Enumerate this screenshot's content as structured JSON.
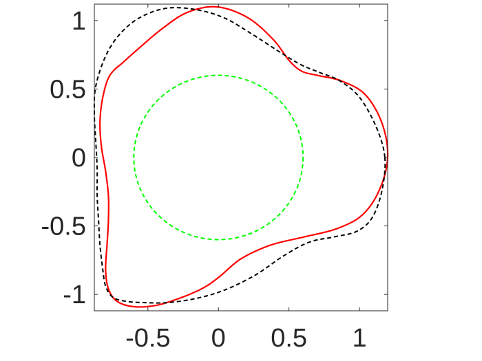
{
  "chart_data": {
    "type": "line",
    "title": "",
    "xlabel": "",
    "ylabel": "",
    "xlim": [
      -0.88,
      1.2
    ],
    "ylim": [
      -1.12,
      1.12
    ],
    "xticks": [
      -0.5,
      0,
      0.5,
      1
    ],
    "yticks": [
      -1,
      -0.5,
      0,
      0.5,
      1
    ],
    "xtick_labels": [
      "-0.5",
      "0",
      "0.5",
      "1"
    ],
    "ytick_labels": [
      "-1",
      "-0.5",
      "0",
      "0.5",
      "1"
    ],
    "grid": false,
    "legend": "none",
    "series": [
      {
        "color": "#ff0000",
        "line_style": "solid",
        "shape": "three-lobed closed curve",
        "x": [
          1.2,
          1.16,
          1.04,
          0.87,
          0.7,
          0.59,
          0.5,
          0.39,
          0.21,
          -0.01,
          -0.22,
          -0.4,
          -0.55,
          -0.67,
          -0.77,
          -0.82,
          -0.84,
          -0.83,
          -0.8,
          -0.78,
          -0.78,
          -0.79,
          -0.8,
          -0.78,
          -0.72,
          -0.6,
          -0.44,
          -0.28,
          -0.16,
          -0.07,
          0.02,
          0.16,
          0.37,
          0.61,
          0.84,
          1.02,
          1.14
        ],
        "y": [
          0.0,
          0.25,
          0.46,
          0.56,
          0.6,
          0.63,
          0.71,
          0.86,
          1.02,
          1.1,
          1.06,
          0.94,
          0.81,
          0.7,
          0.6,
          0.44,
          0.26,
          0.08,
          -0.1,
          -0.28,
          -0.46,
          -0.64,
          -0.82,
          -0.96,
          -1.05,
          -1.09,
          -1.08,
          -1.03,
          -0.98,
          -0.93,
          -0.86,
          -0.74,
          -0.64,
          -0.58,
          -0.52,
          -0.42,
          -0.24
        ]
      },
      {
        "color": "#000000",
        "line_style": "dashed",
        "shape": "reference closed curve",
        "x": [
          1.18,
          1.12,
          1.0,
          0.86,
          0.72,
          0.58,
          0.42,
          0.24,
          0.04,
          -0.16,
          -0.37,
          -0.56,
          -0.7,
          -0.8,
          -0.87,
          -0.88,
          -0.87,
          -0.86,
          -0.86,
          -0.85,
          -0.84,
          -0.82,
          -0.8,
          -0.75,
          -0.66,
          -0.53,
          -0.36,
          -0.16,
          0.04,
          0.26,
          0.46,
          0.64,
          0.82,
          0.98,
          1.09,
          1.16
        ],
        "y": [
          0.0,
          0.22,
          0.44,
          0.56,
          0.62,
          0.68,
          0.78,
          0.9,
          1.02,
          1.08,
          1.09,
          1.02,
          0.9,
          0.74,
          0.52,
          0.32,
          0.12,
          -0.08,
          -0.28,
          -0.46,
          -0.64,
          -0.82,
          -0.94,
          -1.02,
          -1.05,
          -1.06,
          -1.06,
          -1.03,
          -0.97,
          -0.86,
          -0.72,
          -0.62,
          -0.58,
          -0.54,
          -0.44,
          -0.24
        ]
      },
      {
        "color": "#00ff00",
        "line_style": "dashed",
        "shape": "circle",
        "center": [
          0,
          0
        ],
        "radius": 0.6
      }
    ]
  }
}
